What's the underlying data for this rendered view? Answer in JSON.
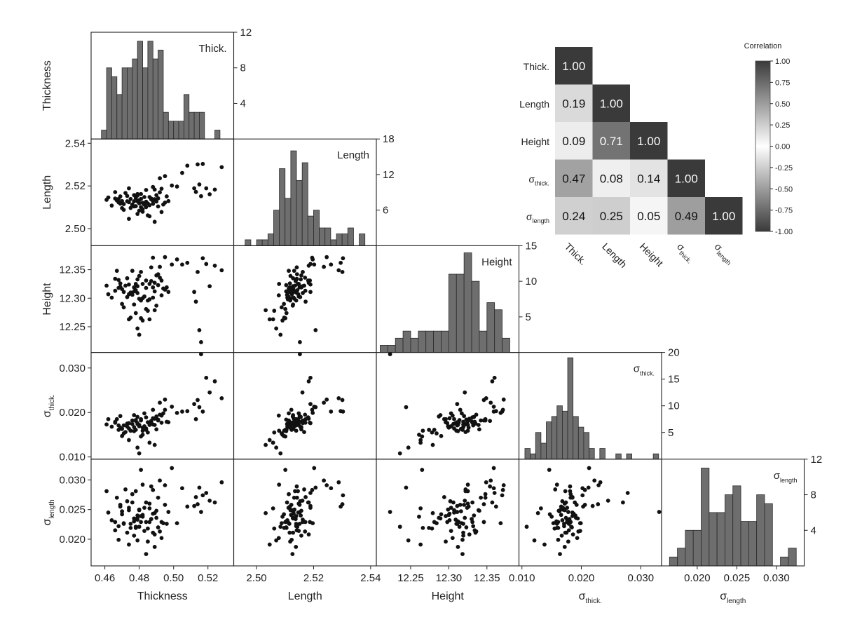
{
  "chart_data": {
    "type": "scatter-matrix",
    "variables": [
      {
        "key": "thick",
        "axis_label": "Thickness",
        "axis_label_sub": "",
        "diag_title": "Thick.",
        "diag_title_sub": "",
        "range": [
          0.452,
          0.535
        ],
        "ticks": [
          0.46,
          0.48,
          0.5,
          0.52
        ],
        "tick_labels": [
          "0.46",
          "0.48",
          "0.50",
          "0.52"
        ],
        "hist_ylim": [
          0,
          12
        ],
        "hist_ticks": [
          4,
          8,
          12
        ],
        "hist_tick_labels": [
          "4",
          "8",
          "12"
        ],
        "hist_bins": [
          0.458,
          0.461,
          0.464,
          0.467,
          0.47,
          0.473,
          0.476,
          0.479,
          0.482,
          0.485,
          0.488,
          0.491,
          0.494,
          0.497,
          0.5,
          0.503,
          0.506,
          0.509,
          0.512,
          0.515,
          0.518,
          0.521,
          0.524,
          0.527,
          0.53
        ],
        "hist_counts": [
          1,
          8,
          7,
          5,
          8,
          8,
          9,
          11,
          8,
          11,
          9,
          10,
          3,
          2,
          2,
          2,
          5,
          3,
          3,
          3,
          0,
          0,
          1,
          0
        ]
      },
      {
        "key": "length",
        "axis_label": "Length",
        "axis_label_sub": "",
        "diag_title": "Length",
        "diag_title_sub": "",
        "range": [
          2.492,
          2.542
        ],
        "ticks": [
          2.5,
          2.52,
          2.54
        ],
        "tick_labels": [
          "2.50",
          "2.52",
          "2.54"
        ],
        "hist_ylim": [
          0,
          18
        ],
        "hist_ticks": [
          6,
          12,
          18
        ],
        "hist_tick_labels": [
          "6",
          "12",
          "18"
        ],
        "hist_bins": [
          2.496,
          2.498,
          2.5,
          2.502,
          2.504,
          2.506,
          2.508,
          2.51,
          2.512,
          2.514,
          2.516,
          2.518,
          2.52,
          2.522,
          2.524,
          2.526,
          2.528,
          2.53,
          2.532,
          2.534,
          2.536,
          2.538
        ],
        "hist_counts": [
          1,
          0,
          1,
          1,
          2,
          6,
          13,
          8,
          16,
          11,
          14,
          5,
          6,
          3,
          3,
          1,
          2,
          2,
          3,
          0,
          2
        ]
      },
      {
        "key": "height",
        "axis_label": "Height",
        "axis_label_sub": "",
        "diag_title": "Height",
        "diag_title_sub": "",
        "range": [
          12.205,
          12.392
        ],
        "ticks": [
          12.25,
          12.3,
          12.35
        ],
        "tick_labels": [
          "12.25",
          "12.30",
          "12.35"
        ],
        "hist_ylim": [
          0,
          15
        ],
        "hist_ticks": [
          5,
          10,
          15
        ],
        "hist_tick_labels": [
          "5",
          "10",
          "15"
        ],
        "hist_bins": [
          12.21,
          12.22,
          12.23,
          12.24,
          12.25,
          12.26,
          12.27,
          12.28,
          12.29,
          12.3,
          12.31,
          12.32,
          12.33,
          12.34,
          12.35,
          12.36,
          12.37,
          12.38,
          12.39
        ],
        "hist_counts": [
          1,
          1,
          2,
          3,
          2,
          3,
          3,
          3,
          3,
          11,
          11,
          14,
          10,
          3,
          7,
          6,
          2,
          0,
          1
        ]
      },
      {
        "key": "sthick",
        "axis_label": "σ",
        "axis_label_sub": "thick.",
        "diag_title": "σ",
        "diag_title_sub": "thick.",
        "range": [
          0.0095,
          0.0335
        ],
        "ticks": [
          0.01,
          0.02,
          0.03
        ],
        "tick_labels": [
          "0.010",
          "0.020",
          "0.030"
        ],
        "hist_ylim": [
          0,
          20
        ],
        "hist_ticks": [
          5,
          10,
          15,
          20
        ],
        "hist_tick_labels": [
          "5",
          "10",
          "15",
          "20"
        ],
        "hist_bins": [
          0.0105,
          0.0114,
          0.0123,
          0.0132,
          0.0141,
          0.015,
          0.0159,
          0.0168,
          0.0177,
          0.0186,
          0.0195,
          0.0204,
          0.0213,
          0.0222,
          0.0231,
          0.024,
          0.0249,
          0.0258,
          0.0267,
          0.0276,
          0.0285,
          0.0294,
          0.0303,
          0.0312,
          0.0321,
          0.033
        ],
        "hist_counts": [
          2,
          1,
          5,
          3,
          7,
          8,
          10,
          9,
          19,
          8,
          6,
          5,
          2,
          0,
          2,
          0,
          0,
          1,
          0,
          1,
          0,
          0,
          0,
          0,
          1
        ]
      },
      {
        "key": "slength",
        "axis_label": "σ",
        "axis_label_sub": "length",
        "diag_title": "σ",
        "diag_title_sub": "length",
        "range": [
          0.0155,
          0.0335
        ],
        "ticks": [
          0.02,
          0.025,
          0.03
        ],
        "tick_labels": [
          "0.020",
          "0.025",
          "0.030"
        ],
        "hist_ylim": [
          0,
          12
        ],
        "hist_ticks": [
          4,
          8,
          12
        ],
        "hist_tick_labels": [
          "4",
          "8",
          "12"
        ],
        "hist_bins": [
          0.0165,
          0.0175,
          0.0185,
          0.0195,
          0.0205,
          0.0215,
          0.0225,
          0.0235,
          0.0245,
          0.0255,
          0.0265,
          0.0275,
          0.0285,
          0.0295,
          0.0305,
          0.0315,
          0.0325
        ],
        "hist_counts": [
          1,
          2,
          4,
          4,
          11,
          6,
          6,
          8,
          9,
          5,
          5,
          8,
          7,
          0,
          1,
          2
        ]
      }
    ],
    "samples": [
      [
        0.461,
        2.5135,
        12.322,
        0.0173,
        0.0281
      ],
      [
        0.464,
        2.5108,
        12.301,
        0.0168,
        0.0232
      ],
      [
        0.466,
        2.5141,
        12.334,
        0.0179,
        0.0215
      ],
      [
        0.467,
        2.5132,
        12.348,
        0.0185,
        0.027
      ],
      [
        0.468,
        2.5123,
        12.318,
        0.0161,
        0.0199
      ],
      [
        0.469,
        2.5151,
        12.32,
        0.0192,
        0.0258
      ],
      [
        0.47,
        2.5096,
        12.29,
        0.0147,
        0.0242
      ],
      [
        0.471,
        2.5115,
        12.311,
        0.0171,
        0.0226
      ],
      [
        0.472,
        2.5167,
        12.322,
        0.0156,
        0.0284
      ],
      [
        0.473,
        2.5128,
        12.335,
        0.0175,
        0.0211
      ],
      [
        0.474,
        2.5046,
        12.263,
        0.0138,
        0.0191
      ],
      [
        0.474,
        2.5124,
        12.307,
        0.0164,
        0.0249
      ],
      [
        0.475,
        2.5139,
        12.31,
        0.0159,
        0.0226
      ],
      [
        0.476,
        2.5113,
        12.348,
        0.0182,
        0.0276
      ],
      [
        0.477,
        2.5157,
        12.319,
        0.0167,
        0.0206
      ],
      [
        0.477,
        2.5128,
        12.289,
        0.0194,
        0.0235
      ],
      [
        0.478,
        2.5105,
        12.274,
        0.0161,
        0.0219
      ],
      [
        0.478,
        2.5145,
        12.325,
        0.0181,
        0.0281
      ],
      [
        0.479,
        2.5069,
        12.247,
        0.0121,
        0.0198
      ],
      [
        0.479,
        2.5128,
        12.321,
        0.0174,
        0.0236
      ],
      [
        0.48,
        2.5084,
        12.236,
        0.0108,
        0.0221
      ],
      [
        0.48,
        2.5133,
        12.299,
        0.0169,
        0.025
      ],
      [
        0.481,
        2.5101,
        12.265,
        0.0146,
        0.0317
      ],
      [
        0.481,
        2.5162,
        12.346,
        0.0182,
        0.0229
      ],
      [
        0.482,
        2.5079,
        12.325,
        0.0159,
        0.0292
      ],
      [
        0.483,
        2.5148,
        12.303,
        0.0198,
        0.0214
      ],
      [
        0.484,
        2.5126,
        12.318,
        0.0164,
        0.0175
      ],
      [
        0.484,
        2.5181,
        12.331,
        0.0189,
        0.0262
      ],
      [
        0.485,
        2.5118,
        12.296,
        0.0178,
        0.0196
      ],
      [
        0.486,
        2.5058,
        12.263,
        0.0132,
        0.0252
      ],
      [
        0.487,
        2.5141,
        12.354,
        0.0181,
        0.0289
      ],
      [
        0.488,
        2.5116,
        12.319,
        0.0173,
        0.0211
      ],
      [
        0.488,
        2.5195,
        12.371,
        0.0206,
        0.0283
      ],
      [
        0.489,
        2.5032,
        12.279,
        0.0127,
        0.0244
      ],
      [
        0.489,
        2.5138,
        12.312,
        0.0172,
        0.0187
      ],
      [
        0.49,
        2.5157,
        12.34,
        0.0162,
        0.0248
      ],
      [
        0.491,
        2.5104,
        12.323,
        0.0184,
        0.022
      ],
      [
        0.492,
        2.5236,
        12.355,
        0.0222,
        0.0299
      ],
      [
        0.493,
        2.5187,
        12.331,
        0.0177,
        0.0229
      ],
      [
        0.494,
        2.5113,
        12.317,
        0.0198,
        0.0227
      ],
      [
        0.495,
        2.5246,
        12.372,
        0.0229,
        0.0291
      ],
      [
        0.497,
        2.5129,
        12.311,
        0.0178,
        0.0246
      ],
      [
        0.499,
        2.5202,
        12.359,
        0.0213,
        0.032
      ],
      [
        0.502,
        2.5197,
        12.368,
        0.0199,
        0.0227
      ],
      [
        0.505,
        2.5261,
        12.359,
        0.0202,
        0.0286
      ],
      [
        0.508,
        2.5295,
        12.362,
        0.0203,
        0.0255
      ],
      [
        0.512,
        2.5189,
        12.311,
        0.0219,
        0.0256
      ],
      [
        0.513,
        2.5172,
        12.294,
        0.0185,
        0.0271
      ],
      [
        0.514,
        2.5301,
        12.346,
        0.0228,
        0.0259
      ],
      [
        0.515,
        2.5207,
        12.244,
        0.0212,
        0.0287
      ],
      [
        0.516,
        2.5152,
        12.223,
        0.0331,
        0.0246
      ],
      [
        0.517,
        2.5303,
        12.37,
        0.0202,
        0.0274
      ],
      [
        0.519,
        2.5189,
        12.36,
        0.0278,
        0.0278
      ],
      [
        0.521,
        2.5161,
        12.321,
        0.0245,
        0.0265
      ],
      [
        0.524,
        2.5183,
        12.357,
        0.027,
        0.0262
      ],
      [
        0.528,
        2.5288,
        12.349,
        0.0232,
        0.0296
      ],
      [
        0.471,
        2.5088,
        12.284,
        0.0153,
        0.0227
      ],
      [
        0.482,
        2.5121,
        12.3,
        0.0166,
        0.0241
      ],
      [
        0.486,
        2.5148,
        12.325,
        0.0172,
        0.026
      ],
      [
        0.475,
        2.5097,
        12.266,
        0.0159,
        0.0219
      ],
      [
        0.479,
        2.5162,
        12.309,
        0.0176,
        0.0233
      ],
      [
        0.483,
        2.5112,
        12.303,
        0.0169,
        0.0253
      ],
      [
        0.49,
        2.5127,
        12.287,
        0.0191,
        0.0236
      ],
      [
        0.478,
        2.5143,
        12.314,
        0.0183,
        0.0221
      ],
      [
        0.47,
        2.5129,
        12.316,
        0.0163,
        0.0247
      ],
      [
        0.492,
        2.517,
        12.336,
        0.0195,
        0.0213
      ],
      [
        0.485,
        2.5062,
        12.278,
        0.0155,
        0.0218
      ],
      [
        0.481,
        2.5139,
        12.296,
        0.0185,
        0.0239
      ],
      [
        0.476,
        2.5107,
        12.306,
        0.0174,
        0.0262
      ],
      [
        0.489,
        2.5183,
        12.327,
        0.0186,
        0.0208
      ],
      [
        0.496,
        2.5151,
        12.319,
        0.0179,
        0.0226
      ],
      [
        0.473,
        2.5153,
        12.302,
        0.0168,
        0.0264
      ],
      [
        0.48,
        2.5119,
        12.339,
        0.0172,
        0.0249
      ],
      [
        0.487,
        2.5137,
        12.33,
        0.018,
        0.0234
      ],
      [
        0.466,
        2.5171,
        12.313,
        0.0177,
        0.0229
      ],
      [
        0.462,
        2.5146,
        12.307,
        0.0185,
        0.0245
      ],
      [
        0.484,
        2.5101,
        12.281,
        0.0161,
        0.0229
      ],
      [
        0.493,
        2.5078,
        12.305,
        0.0193,
        0.0202
      ],
      [
        0.468,
        2.5139,
        12.332,
        0.0171,
        0.0222
      ],
      [
        0.474,
        2.5189,
        12.324,
        0.0176,
        0.0253
      ],
      [
        0.488,
        2.513,
        12.301,
        0.0187,
        0.0243
      ],
      [
        0.477,
        2.5104,
        12.312,
        0.0158,
        0.023
      ],
      [
        0.491,
        2.5142,
        12.342,
        0.0182,
        0.027
      ],
      [
        0.482,
        2.5091,
        12.261,
        0.015,
        0.0238
      ],
      [
        0.495,
        2.5122,
        12.315,
        0.0206,
        0.0258
      ],
      [
        0.469,
        2.5117,
        12.326,
        0.0166,
        0.0255
      ],
      [
        0.486,
        2.511,
        12.298,
        0.0176,
        0.0229
      ],
      [
        0.479,
        2.5155,
        12.333,
        0.019,
        0.024
      ]
    ],
    "correlation": {
      "title": "Correlation",
      "row_labels": [
        {
          "main": "Thick.",
          "sub": ""
        },
        {
          "main": "Length",
          "sub": ""
        },
        {
          "main": "Height",
          "sub": ""
        },
        {
          "main": "σ",
          "sub": "thick."
        },
        {
          "main": "σ",
          "sub": "length"
        }
      ],
      "col_labels": [
        {
          "main": "Thick.",
          "sub": ""
        },
        {
          "main": "Length",
          "sub": ""
        },
        {
          "main": "Height",
          "sub": ""
        },
        {
          "main": "σ",
          "sub": "thick."
        },
        {
          "main": "σ",
          "sub": "length"
        }
      ],
      "matrix": [
        [
          1.0
        ],
        [
          0.19,
          1.0
        ],
        [
          0.09,
          0.71,
          1.0
        ],
        [
          0.47,
          0.08,
          0.14,
          1.0
        ],
        [
          0.24,
          0.25,
          0.05,
          0.49,
          1.0
        ]
      ],
      "value_labels": [
        [
          "1.00"
        ],
        [
          "0.19",
          "1.00"
        ],
        [
          "0.09",
          "0.71",
          "1.00"
        ],
        [
          "0.47",
          "0.08",
          "0.14",
          "1.00"
        ],
        [
          "0.24",
          "0.25",
          "0.05",
          "0.49",
          "1.00"
        ]
      ],
      "colorbar_range": [
        -1.0,
        1.0
      ],
      "colorbar_ticks": [
        1.0,
        0.75,
        0.5,
        0.25,
        0.0,
        -0.25,
        -0.5,
        -0.75,
        -1.0
      ],
      "colorbar_tick_labels": [
        "1.00",
        "0.75",
        "0.50",
        "0.25",
        "0.00",
        "-0.25",
        "-0.50",
        "-0.75",
        "-1.00"
      ],
      "colormap": [
        "#3a3a3a",
        "#ffffff",
        "#3a3a3a"
      ]
    },
    "colors": {
      "bar": "#6e6e6e",
      "bar_edge": "#2a2a2a",
      "point": "#111111",
      "frame": "#222222"
    }
  }
}
